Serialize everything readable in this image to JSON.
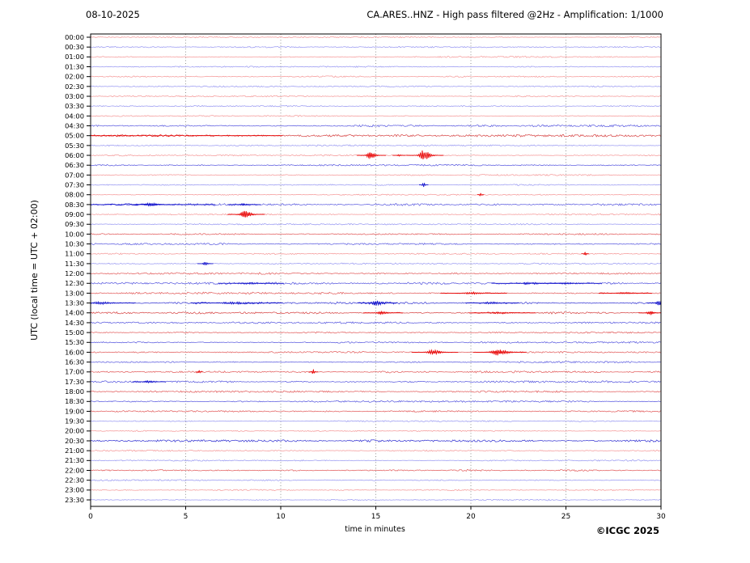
{
  "header": {
    "date": "08-10-2025",
    "title": "CA.ARES..HNZ - High pass filtered @2Hz - Amplification: 1/1000"
  },
  "axes": {
    "xlabel": "time in minutes",
    "ylabel": "UTC (local time = UTC + 02:00)"
  },
  "footer": {
    "copyright": "©ICGC 2025"
  },
  "palette": {
    "red_light": "#f59a9a",
    "red_medium": "#e36060",
    "red_dark": "#d84a4a",
    "red_event": "#e80000",
    "blue_light": "#9a9af2",
    "blue_medium": "#5e5ee0",
    "blue_dark": "#3a3ad4",
    "blue_event": "#1212cc",
    "grid": "#777777",
    "axis": "#000000",
    "background": "#ffffff"
  },
  "chart_data": {
    "type": "line",
    "title": "CA.ARES..HNZ - High pass filtered @2Hz - Amplification: 1/1000",
    "subtitle_date": "08-10-2025",
    "xlabel": "time in minutes",
    "ylabel": "UTC (local time = UTC + 02:00)",
    "xlim": [
      0,
      30
    ],
    "x_ticks": [
      0,
      5,
      10,
      15,
      20,
      25,
      30
    ],
    "grid_minutes": [
      5,
      10,
      15,
      20,
      25
    ],
    "grid_style": "dotted",
    "legend": "none",
    "row_interval_minutes": 30,
    "color_rule": "hour rows red, half-hour rows blue, alternating",
    "rows": [
      {
        "t": "00:00",
        "n": 0.45,
        "ev": []
      },
      {
        "t": "00:30",
        "n": 0.5,
        "ev": []
      },
      {
        "t": "01:00",
        "n": 0.5,
        "ev": []
      },
      {
        "t": "01:30",
        "n": 0.5,
        "ev": []
      },
      {
        "t": "02:00",
        "n": 0.5,
        "ev": []
      },
      {
        "t": "02:30",
        "n": 0.45,
        "ev": []
      },
      {
        "t": "03:00",
        "n": 0.5,
        "ev": []
      },
      {
        "t": "03:30",
        "n": 0.5,
        "ev": []
      },
      {
        "t": "04:00",
        "n": 0.5,
        "ev": []
      },
      {
        "t": "04:30",
        "n": 0.75,
        "ev": []
      },
      {
        "t": "05:00",
        "n": 0.85,
        "ev": [
          [
            2.5,
            1.2,
            2.0
          ]
        ]
      },
      {
        "t": "05:30",
        "n": 0.55,
        "ev": []
      },
      {
        "t": "06:00",
        "n": 0.55,
        "ev": [
          [
            14.7,
            3.2,
            0.22
          ],
          [
            16.2,
            0.7,
            0.1
          ],
          [
            17.5,
            5.0,
            0.28
          ]
        ]
      },
      {
        "t": "06:30",
        "n": 0.6,
        "ev": []
      },
      {
        "t": "07:00",
        "n": 0.5,
        "ev": []
      },
      {
        "t": "07:30",
        "n": 0.5,
        "ev": [
          [
            17.5,
            2.2,
            0.07
          ]
        ]
      },
      {
        "t": "08:00",
        "n": 0.45,
        "ev": [
          [
            20.5,
            1.6,
            0.05
          ]
        ]
      },
      {
        "t": "08:30",
        "n": 0.8,
        "ev": [
          [
            2.0,
            1.0,
            1.2
          ],
          [
            3.1,
            1.8,
            0.3
          ],
          [
            8.0,
            0.9,
            0.25
          ]
        ]
      },
      {
        "t": "09:00",
        "n": 0.55,
        "ev": [
          [
            8.1,
            4.0,
            0.28
          ]
        ]
      },
      {
        "t": "09:30",
        "n": 0.5,
        "ev": []
      },
      {
        "t": "10:00",
        "n": 0.6,
        "ev": []
      },
      {
        "t": "10:30",
        "n": 0.7,
        "ev": []
      },
      {
        "t": "11:00",
        "n": 0.55,
        "ev": [
          [
            26.0,
            1.8,
            0.06
          ]
        ]
      },
      {
        "t": "11:30",
        "n": 0.55,
        "ev": [
          [
            6.0,
            1.8,
            0.12
          ]
        ]
      },
      {
        "t": "12:00",
        "n": 0.7,
        "ev": []
      },
      {
        "t": "12:30",
        "n": 0.8,
        "ev": [
          [
            8.3,
            1.0,
            0.5
          ],
          [
            23.0,
            1.0,
            0.6
          ],
          [
            25.0,
            0.9,
            0.5
          ]
        ]
      },
      {
        "t": "13:00",
        "n": 0.8,
        "ev": [
          [
            20.0,
            1.2,
            0.5
          ],
          [
            28.0,
            1.0,
            0.4
          ]
        ]
      },
      {
        "t": "13:30",
        "n": 1.0,
        "ev": [
          [
            0.5,
            1.4,
            0.5
          ],
          [
            7.5,
            1.5,
            0.7
          ],
          [
            15.0,
            2.4,
            0.3
          ],
          [
            21.0,
            1.2,
            0.4
          ],
          [
            29.9,
            2.8,
            0.2
          ]
        ]
      },
      {
        "t": "14:00",
        "n": 0.85,
        "ev": [
          [
            15.3,
            1.4,
            0.3
          ],
          [
            21.5,
            0.9,
            0.5
          ],
          [
            29.4,
            1.8,
            0.18
          ]
        ]
      },
      {
        "t": "14:30",
        "n": 0.7,
        "ev": []
      },
      {
        "t": "15:00",
        "n": 0.6,
        "ev": []
      },
      {
        "t": "15:30",
        "n": 0.65,
        "ev": []
      },
      {
        "t": "16:00",
        "n": 0.6,
        "ev": [
          [
            18.0,
            2.4,
            0.35
          ],
          [
            21.4,
            3.4,
            0.4
          ]
        ]
      },
      {
        "t": "16:30",
        "n": 0.65,
        "ev": []
      },
      {
        "t": "17:00",
        "n": 0.7,
        "ev": [
          [
            5.7,
            1.4,
            0.05
          ],
          [
            11.7,
            2.0,
            0.07
          ]
        ]
      },
      {
        "t": "17:30",
        "n": 0.7,
        "ev": [
          [
            3.0,
            1.2,
            0.25
          ]
        ]
      },
      {
        "t": "18:00",
        "n": 0.65,
        "ev": []
      },
      {
        "t": "18:30",
        "n": 0.65,
        "ev": []
      },
      {
        "t": "19:00",
        "n": 0.6,
        "ev": []
      },
      {
        "t": "19:30",
        "n": 0.5,
        "ev": []
      },
      {
        "t": "20:00",
        "n": 0.5,
        "ev": []
      },
      {
        "t": "20:30",
        "n": 0.85,
        "ev": []
      },
      {
        "t": "21:00",
        "n": 0.55,
        "ev": []
      },
      {
        "t": "21:30",
        "n": 0.5,
        "ev": []
      },
      {
        "t": "22:00",
        "n": 0.7,
        "ev": []
      },
      {
        "t": "22:30",
        "n": 0.55,
        "ev": []
      },
      {
        "t": "23:00",
        "n": 0.5,
        "ev": []
      },
      {
        "t": "23:30",
        "n": 0.55,
        "ev": []
      }
    ],
    "events_legend": "ev entries are [minute_offset, amplitude_px, width_minutes]; notable bursts at 06:00 (14.7 & 17.5 min), 09:00 (8.1 min), 13:30 (15 & 30 min), 16:00 (18 & 21.4 min)"
  }
}
